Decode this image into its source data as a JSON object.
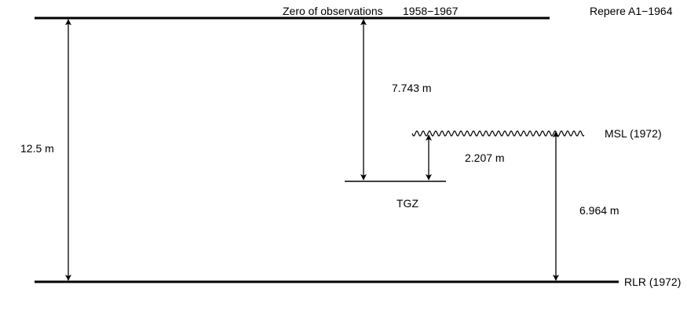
{
  "labels": {
    "zero_observations": "Zero of observations",
    "years": "1958−1967",
    "repere": "Repere A1−1964",
    "msl": "MSL (1972)",
    "tgz": "TGZ",
    "rlr": "RLR (1972)"
  },
  "measurements": {
    "zero_to_rlr": "12.5 m",
    "zero_to_tgz": "7.743 m",
    "tgz_to_msl": "2.207 m",
    "msl_to_rlr": "6.964 m"
  },
  "colors": {
    "line": "#000000",
    "background": "#ffffff"
  }
}
